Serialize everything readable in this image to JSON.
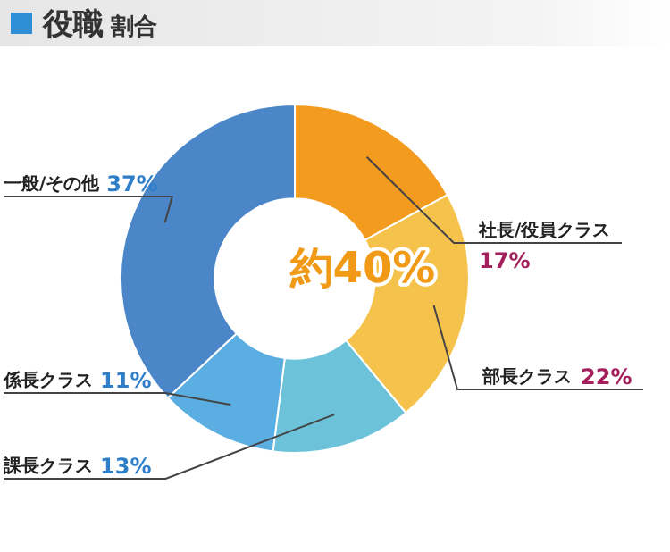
{
  "chart_data": {
    "type": "donut",
    "title": "役職 割合",
    "categories": [
      "社長/役員クラス",
      "部長クラス",
      "課長クラス",
      "係長クラス",
      "一般/その他"
    ],
    "values": [
      17,
      22,
      13,
      11,
      37
    ],
    "value_labels": [
      "17%",
      "22%",
      "13%",
      "11%",
      "37%"
    ],
    "colors": [
      "#f39b1f",
      "#f5c24c",
      "#6cc3d9",
      "#5aaee2",
      "#4a86c8"
    ],
    "annotations": [
      "約40%"
    ],
    "legend": false
  }
}
